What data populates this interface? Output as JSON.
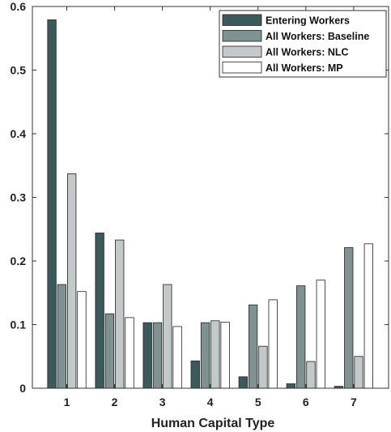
{
  "chart_data": {
    "type": "bar",
    "xlabel": "Human Capital Type",
    "ylabel": "",
    "categories": [
      "1",
      "2",
      "3",
      "4",
      "5",
      "6",
      "7"
    ],
    "ylim": [
      0,
      0.6
    ],
    "yticks": [
      0,
      0.1,
      0.2,
      0.3,
      0.4,
      0.5,
      0.6
    ],
    "ytick_labels": [
      "0",
      "0.1",
      "0.2",
      "0.3",
      "0.4",
      "0.5",
      "0.6"
    ],
    "grid": false,
    "legend_position": "top-right",
    "series": [
      {
        "name": "Entering Workers",
        "color": "#3b5a5b",
        "values": [
          0.579,
          0.244,
          0.103,
          0.043,
          0.018,
          0.007,
          0.003
        ]
      },
      {
        "name": "All Workers: Baseline",
        "color": "#7e9292",
        "values": [
          0.163,
          0.117,
          0.103,
          0.103,
          0.131,
          0.161,
          0.221
        ]
      },
      {
        "name": "All Workers: NLC",
        "color": "#c3c8c8",
        "values": [
          0.337,
          0.233,
          0.163,
          0.106,
          0.066,
          0.042,
          0.05
        ]
      },
      {
        "name": "All Workers: MP",
        "color": "#ffffff",
        "values": [
          0.152,
          0.111,
          0.097,
          0.104,
          0.139,
          0.17,
          0.227
        ]
      }
    ]
  }
}
